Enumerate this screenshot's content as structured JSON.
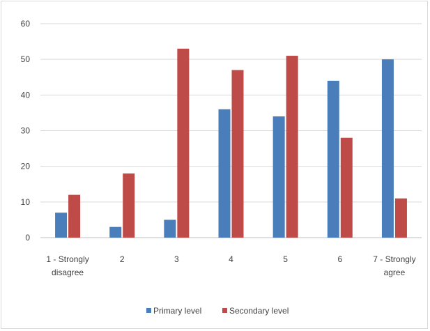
{
  "chart_data": {
    "type": "bar",
    "categories": [
      [
        "1 - Strongly",
        "disagree"
      ],
      [
        "2"
      ],
      [
        "3"
      ],
      [
        "4"
      ],
      [
        "5"
      ],
      [
        "6"
      ],
      [
        "7 - Strongly",
        "agree"
      ]
    ],
    "series": [
      {
        "name": "Primary level",
        "color": "#4a7ebb",
        "values": [
          7,
          3,
          5,
          36,
          34,
          44,
          50
        ]
      },
      {
        "name": "Secondary level",
        "color": "#be4b48",
        "values": [
          12,
          18,
          53,
          47,
          51,
          28,
          11
        ]
      }
    ],
    "ylim": [
      0,
      60
    ],
    "yticks": [
      0,
      10,
      20,
      30,
      40,
      50,
      60
    ],
    "grid": true,
    "legend_position": "bottom",
    "title": "",
    "xlabel": "",
    "ylabel": ""
  }
}
